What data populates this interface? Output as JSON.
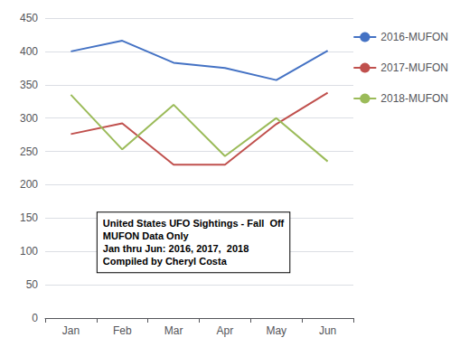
{
  "chart_data": {
    "type": "line",
    "categories": [
      "Jan",
      "Feb",
      "Mar",
      "Apr",
      "May",
      "Jun"
    ],
    "series": [
      {
        "name": "2016-MUFON",
        "color": "#4472C4",
        "values": [
          400,
          416,
          383,
          375,
          357,
          401
        ]
      },
      {
        "name": "2017-MUFON",
        "color": "#C0504D",
        "values": [
          276,
          292,
          230,
          230,
          291,
          338
        ]
      },
      {
        "name": "2018-MUFON",
        "color": "#9BBB59",
        "values": [
          335,
          253,
          320,
          243,
          300,
          235
        ]
      }
    ],
    "ylim": [
      0,
      450
    ],
    "yticks": [
      0,
      50,
      100,
      150,
      200,
      250,
      300,
      350,
      400,
      450
    ],
    "grid": true,
    "legend": "right",
    "annotations": [
      "United States UFO Sightings - Fall  Off",
      "MUFON Data Only",
      "Jan thru Jun: 2016, 2017,  2018",
      "Compiled by Cheryl Costa"
    ]
  }
}
